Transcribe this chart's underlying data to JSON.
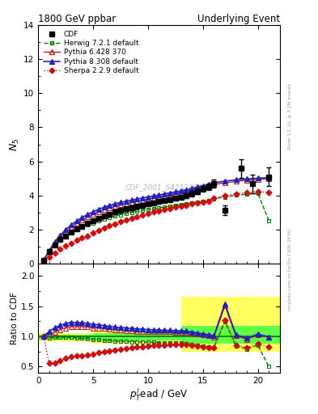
{
  "title_left": "1800 GeV ppbar",
  "title_right": "Underlying Event",
  "ylabel_main": "$N_5$",
  "ylabel_ratio": "Ratio to CDF",
  "xlabel": "$p_{T}^{l}$ead / GeV",
  "watermark": "CDF_2001_S4751469",
  "right_label_top": "Rivet 3.1.10, ≥ 3.2M events",
  "right_label_bot": "mcplots.cern.ch [arXiv:1306.3436]",
  "cdf_x": [
    0.5,
    1.0,
    1.5,
    2.0,
    2.5,
    3.0,
    3.5,
    4.0,
    4.5,
    5.0,
    5.5,
    6.0,
    6.5,
    7.0,
    7.5,
    8.0,
    8.5,
    9.0,
    9.5,
    10.0,
    10.5,
    11.0,
    11.5,
    12.0,
    12.5,
    13.0,
    13.5,
    14.0,
    14.5,
    15.0,
    15.5,
    16.0,
    17.0,
    18.5,
    19.5,
    21.0
  ],
  "cdf_y": [
    0.22,
    0.72,
    1.12,
    1.42,
    1.65,
    1.85,
    2.05,
    2.22,
    2.38,
    2.55,
    2.68,
    2.82,
    2.93,
    3.05,
    3.14,
    3.22,
    3.3,
    3.38,
    3.45,
    3.52,
    3.59,
    3.65,
    3.72,
    3.78,
    3.85,
    3.92,
    4.0,
    4.12,
    4.25,
    4.4,
    4.52,
    4.7,
    3.15,
    5.6,
    4.7,
    5.1
  ],
  "cdf_yerr": [
    0.03,
    0.04,
    0.04,
    0.04,
    0.04,
    0.05,
    0.05,
    0.05,
    0.06,
    0.06,
    0.07,
    0.07,
    0.08,
    0.08,
    0.09,
    0.09,
    0.1,
    0.1,
    0.1,
    0.11,
    0.11,
    0.11,
    0.11,
    0.12,
    0.12,
    0.13,
    0.14,
    0.15,
    0.17,
    0.18,
    0.2,
    0.25,
    0.3,
    0.55,
    0.55,
    0.55
  ],
  "herwig_x": [
    0.5,
    1.0,
    1.5,
    2.0,
    2.5,
    3.0,
    3.5,
    4.0,
    4.5,
    5.0,
    5.5,
    6.0,
    6.5,
    7.0,
    7.5,
    8.0,
    8.5,
    9.0,
    9.5,
    10.0,
    10.5,
    11.0,
    11.5,
    12.0,
    12.5,
    13.0,
    13.5,
    14.0,
    14.5,
    15.0,
    15.5,
    16.0,
    17.0,
    18.0,
    19.0,
    20.0,
    21.0
  ],
  "herwig_y": [
    0.22,
    0.7,
    1.1,
    1.4,
    1.62,
    1.82,
    2.0,
    2.15,
    2.28,
    2.4,
    2.52,
    2.62,
    2.72,
    2.8,
    2.88,
    2.95,
    3.01,
    3.08,
    3.13,
    3.18,
    3.23,
    3.28,
    3.33,
    3.38,
    3.43,
    3.48,
    3.53,
    3.58,
    3.63,
    3.68,
    3.73,
    3.82,
    3.92,
    4.02,
    4.08,
    4.12,
    2.55
  ],
  "pythia6_x": [
    0.5,
    1.0,
    1.5,
    2.0,
    2.5,
    3.0,
    3.5,
    4.0,
    4.5,
    5.0,
    5.5,
    6.0,
    6.5,
    7.0,
    7.5,
    8.0,
    8.5,
    9.0,
    9.5,
    10.0,
    10.5,
    11.0,
    11.5,
    12.0,
    12.5,
    13.0,
    13.5,
    14.0,
    14.5,
    15.0,
    15.5,
    16.0,
    17.0,
    18.0,
    19.0,
    20.0,
    21.0
  ],
  "pythia6_y": [
    0.22,
    0.75,
    1.2,
    1.58,
    1.88,
    2.15,
    2.38,
    2.58,
    2.75,
    2.9,
    3.05,
    3.18,
    3.28,
    3.38,
    3.46,
    3.53,
    3.6,
    3.67,
    3.73,
    3.8,
    3.87,
    3.93,
    4.0,
    4.06,
    4.13,
    4.2,
    4.27,
    4.35,
    4.42,
    4.5,
    4.57,
    4.65,
    4.75,
    4.83,
    4.9,
    4.95,
    5.0
  ],
  "pythia8_x": [
    0.5,
    1.0,
    1.5,
    2.0,
    2.5,
    3.0,
    3.5,
    4.0,
    4.5,
    5.0,
    5.5,
    6.0,
    6.5,
    7.0,
    7.5,
    8.0,
    8.5,
    9.0,
    9.5,
    10.0,
    10.5,
    11.0,
    11.5,
    12.0,
    12.5,
    13.0,
    13.5,
    14.0,
    14.5,
    15.0,
    15.5,
    16.0,
    17.0,
    18.0,
    19.0,
    20.0,
    21.0
  ],
  "pythia8_y": [
    0.22,
    0.78,
    1.28,
    1.68,
    2.0,
    2.28,
    2.52,
    2.72,
    2.9,
    3.05,
    3.2,
    3.32,
    3.42,
    3.52,
    3.6,
    3.67,
    3.74,
    3.8,
    3.86,
    3.92,
    3.98,
    4.04,
    4.1,
    4.16,
    4.22,
    4.28,
    4.35,
    4.42,
    4.5,
    4.58,
    4.65,
    4.75,
    4.85,
    4.92,
    4.98,
    5.02,
    5.05
  ],
  "sherpa_x": [
    0.5,
    1.0,
    1.5,
    2.0,
    2.5,
    3.0,
    3.5,
    4.0,
    4.5,
    5.0,
    5.5,
    6.0,
    6.5,
    7.0,
    7.5,
    8.0,
    8.5,
    9.0,
    9.5,
    10.0,
    10.5,
    11.0,
    11.5,
    12.0,
    12.5,
    13.0,
    13.5,
    14.0,
    14.5,
    15.0,
    15.5,
    16.0,
    17.0,
    18.0,
    19.0,
    20.0,
    21.0
  ],
  "sherpa_y": [
    0.22,
    0.4,
    0.62,
    0.85,
    1.05,
    1.22,
    1.38,
    1.52,
    1.65,
    1.8,
    1.95,
    2.1,
    2.23,
    2.36,
    2.48,
    2.58,
    2.68,
    2.78,
    2.87,
    2.96,
    3.04,
    3.12,
    3.19,
    3.26,
    3.32,
    3.38,
    3.44,
    3.5,
    3.56,
    3.62,
    3.68,
    3.85,
    4.0,
    4.1,
    4.18,
    4.25,
    4.18
  ],
  "ylim_main": [
    0,
    14
  ],
  "ylim_ratio": [
    0.4,
    2.2
  ],
  "xlim": [
    0,
    22
  ],
  "cdf_color": "#000000",
  "herwig_color": "#007700",
  "pythia6_color": "#BB2222",
  "pythia8_color": "#2222BB",
  "sherpa_color": "#CC1111",
  "legend_entries": [
    "CDF",
    "Herwig 7.2.1 default",
    "Pythia 6.428 370",
    "Pythia 8.308 default",
    "Sherpa 2.2.9 default"
  ],
  "band_regions": [
    {
      "xmin": 0,
      "xmax": 5,
      "yellow": [
        0.92,
        1.06
      ],
      "green": [
        0.95,
        1.03
      ]
    },
    {
      "xmin": 5,
      "xmax": 13,
      "yellow": [
        0.88,
        1.1
      ],
      "green": [
        0.93,
        1.05
      ]
    },
    {
      "xmin": 13,
      "xmax": 22,
      "yellow": [
        0.75,
        1.65
      ],
      "green": [
        0.88,
        1.18
      ]
    }
  ]
}
